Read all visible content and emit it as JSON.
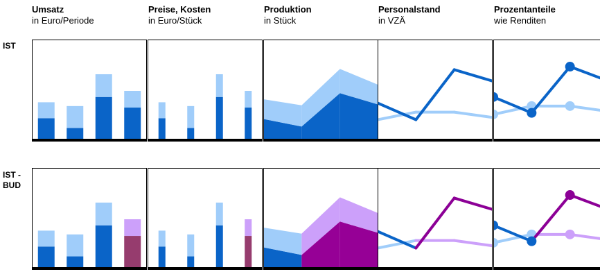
{
  "columns": [
    {
      "title": "Umsatz",
      "subtitle": "in Euro/Periode"
    },
    {
      "title": "Preise, Kosten",
      "subtitle": "in Euro/Stück"
    },
    {
      "title": "Produktion",
      "subtitle": "in Stück"
    },
    {
      "title": "Personalstand",
      "subtitle": "in VZÄ"
    },
    {
      "title": "Prozentanteile",
      "subtitle": "wie Renditen"
    }
  ],
  "rows": [
    {
      "label_line1": "IST",
      "label_line2": ""
    },
    {
      "label_line1": "IST -",
      "label_line2": "BUD"
    }
  ],
  "colors": {
    "dark": "#0a64c8",
    "light": "#a0cdfa",
    "budget_light": "#cca0fa",
    "budget_dark": "#963c6e",
    "budget_dark_area": "#960096",
    "budget_line": "#8c0096",
    "frame": "#000000"
  },
  "chart_data": [
    {
      "type": "bar",
      "name": "umsatz-ist",
      "categories": [
        "1",
        "2",
        "3",
        "4"
      ],
      "series": [
        {
          "values": [
            29,
            16,
            57,
            43
          ]
        },
        {
          "values": [
            21,
            29,
            30,
            22
          ]
        }
      ],
      "stacked": true,
      "ylim": [
        0,
        130
      ],
      "budget_from_index": null
    },
    {
      "type": "bar",
      "name": "preise-ist",
      "categories": [
        "1",
        "2",
        "3",
        "4"
      ],
      "series": [
        {
          "values": [
            29,
            16,
            57,
            43
          ]
        },
        {
          "values": [
            21,
            29,
            30,
            22
          ]
        }
      ],
      "stacked": true,
      "ylim": [
        0,
        130
      ],
      "budget_from_index": null
    },
    {
      "type": "area",
      "name": "produktion-ist",
      "x": [
        0,
        1,
        2,
        3
      ],
      "series": [
        {
          "values": [
            28,
            18,
            62,
            47
          ]
        },
        {
          "values": [
            26,
            28,
            32,
            26
          ]
        }
      ],
      "stacked": true,
      "ylim": [
        0,
        130
      ],
      "budget_from_index": null
    },
    {
      "type": "line",
      "name": "personalstand-ist",
      "x": [
        0,
        1,
        2,
        3
      ],
      "series": [
        {
          "values": [
            49,
            27,
            93,
            78
          ]
        },
        {
          "values": [
            27,
            37,
            37,
            30
          ]
        }
      ],
      "ylim": [
        0,
        130
      ],
      "markers": false,
      "budget_from_index": null
    },
    {
      "type": "line",
      "name": "prozentanteile-ist",
      "x": [
        0,
        1,
        2,
        3
      ],
      "series": [
        {
          "values": [
            57,
            36,
            97,
            78
          ]
        },
        {
          "values": [
            34,
            45,
            45,
            38
          ]
        }
      ],
      "ylim": [
        0,
        130
      ],
      "markers": true,
      "budget_from_index": null
    },
    {
      "type": "bar",
      "name": "umsatz-ist-bud",
      "categories": [
        "1",
        "2",
        "3",
        "4"
      ],
      "series": [
        {
          "values": [
            29,
            16,
            57,
            43
          ]
        },
        {
          "values": [
            21,
            29,
            30,
            22
          ]
        }
      ],
      "stacked": true,
      "ylim": [
        0,
        130
      ],
      "budget_from_index": 3
    },
    {
      "type": "bar",
      "name": "preise-ist-bud",
      "categories": [
        "1",
        "2",
        "3",
        "4"
      ],
      "series": [
        {
          "values": [
            29,
            16,
            57,
            43
          ]
        },
        {
          "values": [
            21,
            29,
            30,
            22
          ]
        }
      ],
      "stacked": true,
      "ylim": [
        0,
        130
      ],
      "budget_from_index": 3
    },
    {
      "type": "area",
      "name": "produktion-ist-bud",
      "x": [
        0,
        1,
        2,
        3
      ],
      "series": [
        {
          "values": [
            28,
            18,
            62,
            47
          ]
        },
        {
          "values": [
            26,
            28,
            32,
            26
          ]
        }
      ],
      "stacked": true,
      "ylim": [
        0,
        130
      ],
      "budget_from_index": 2
    },
    {
      "type": "line",
      "name": "personalstand-ist-bud",
      "x": [
        0,
        1,
        2,
        3
      ],
      "series": [
        {
          "values": [
            49,
            27,
            93,
            78
          ]
        },
        {
          "values": [
            27,
            37,
            37,
            30
          ]
        }
      ],
      "ylim": [
        0,
        130
      ],
      "markers": false,
      "budget_from_index": 2
    },
    {
      "type": "line",
      "name": "prozentanteile-ist-bud",
      "x": [
        0,
        1,
        2,
        3
      ],
      "series": [
        {
          "values": [
            57,
            36,
            97,
            78
          ]
        },
        {
          "values": [
            34,
            45,
            45,
            38
          ]
        }
      ],
      "ylim": [
        0,
        130
      ],
      "markers": true,
      "budget_from_index": 2
    }
  ]
}
